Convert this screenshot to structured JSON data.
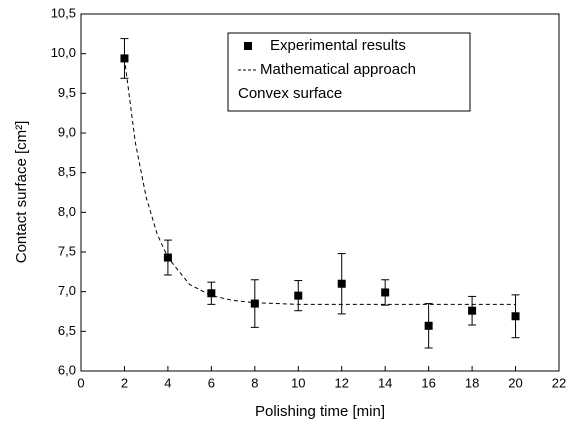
{
  "chart_data": {
    "type": "scatter",
    "xlabel": "Polishing time [min]",
    "ylabel": "Contact surface [cm²]",
    "xlim": [
      0,
      22
    ],
    "xticks": [
      0,
      2,
      4,
      6,
      8,
      10,
      12,
      14,
      16,
      18,
      20,
      22
    ],
    "ylim": [
      6.0,
      10.5
    ],
    "yticks": [
      {
        "value": 6.0,
        "label": "6,0"
      },
      {
        "value": 6.5,
        "label": "6,5"
      },
      {
        "value": 7.0,
        "label": "7,0"
      },
      {
        "value": 7.5,
        "label": "7,5"
      },
      {
        "value": 8.0,
        "label": "8,0"
      },
      {
        "value": 8.5,
        "label": "8,5"
      },
      {
        "value": 9.0,
        "label": "9,0"
      },
      {
        "value": 9.5,
        "label": "9,5"
      },
      {
        "value": 10.0,
        "label": "10,0"
      },
      {
        "value": 10.5,
        "label": "10,5"
      }
    ],
    "legend": "upper right",
    "annotation": "Convex surface",
    "series": [
      {
        "name": "Experimental results",
        "color": "#000000",
        "marker": "square",
        "x": [
          2,
          4,
          6,
          8,
          10,
          12,
          14,
          16,
          18,
          20
        ],
        "values": [
          9.94,
          7.43,
          6.98,
          6.85,
          6.95,
          7.1,
          6.99,
          6.57,
          6.76,
          6.69
        ],
        "errors": [
          0.25,
          0.22,
          0.14,
          0.3,
          0.19,
          0.38,
          0.16,
          0.28,
          0.18,
          0.27
        ]
      },
      {
        "name": "Mathematical approach",
        "color": "#000000",
        "line": "dashed",
        "x": [
          2,
          2.5,
          3,
          3.5,
          4,
          5,
          6,
          7,
          8,
          10,
          12,
          14,
          16,
          18,
          20
        ],
        "values": [
          9.94,
          8.88,
          8.19,
          7.73,
          7.43,
          7.09,
          6.95,
          6.89,
          6.86,
          6.84,
          6.84,
          6.84,
          6.84,
          6.84,
          6.84
        ]
      }
    ]
  }
}
